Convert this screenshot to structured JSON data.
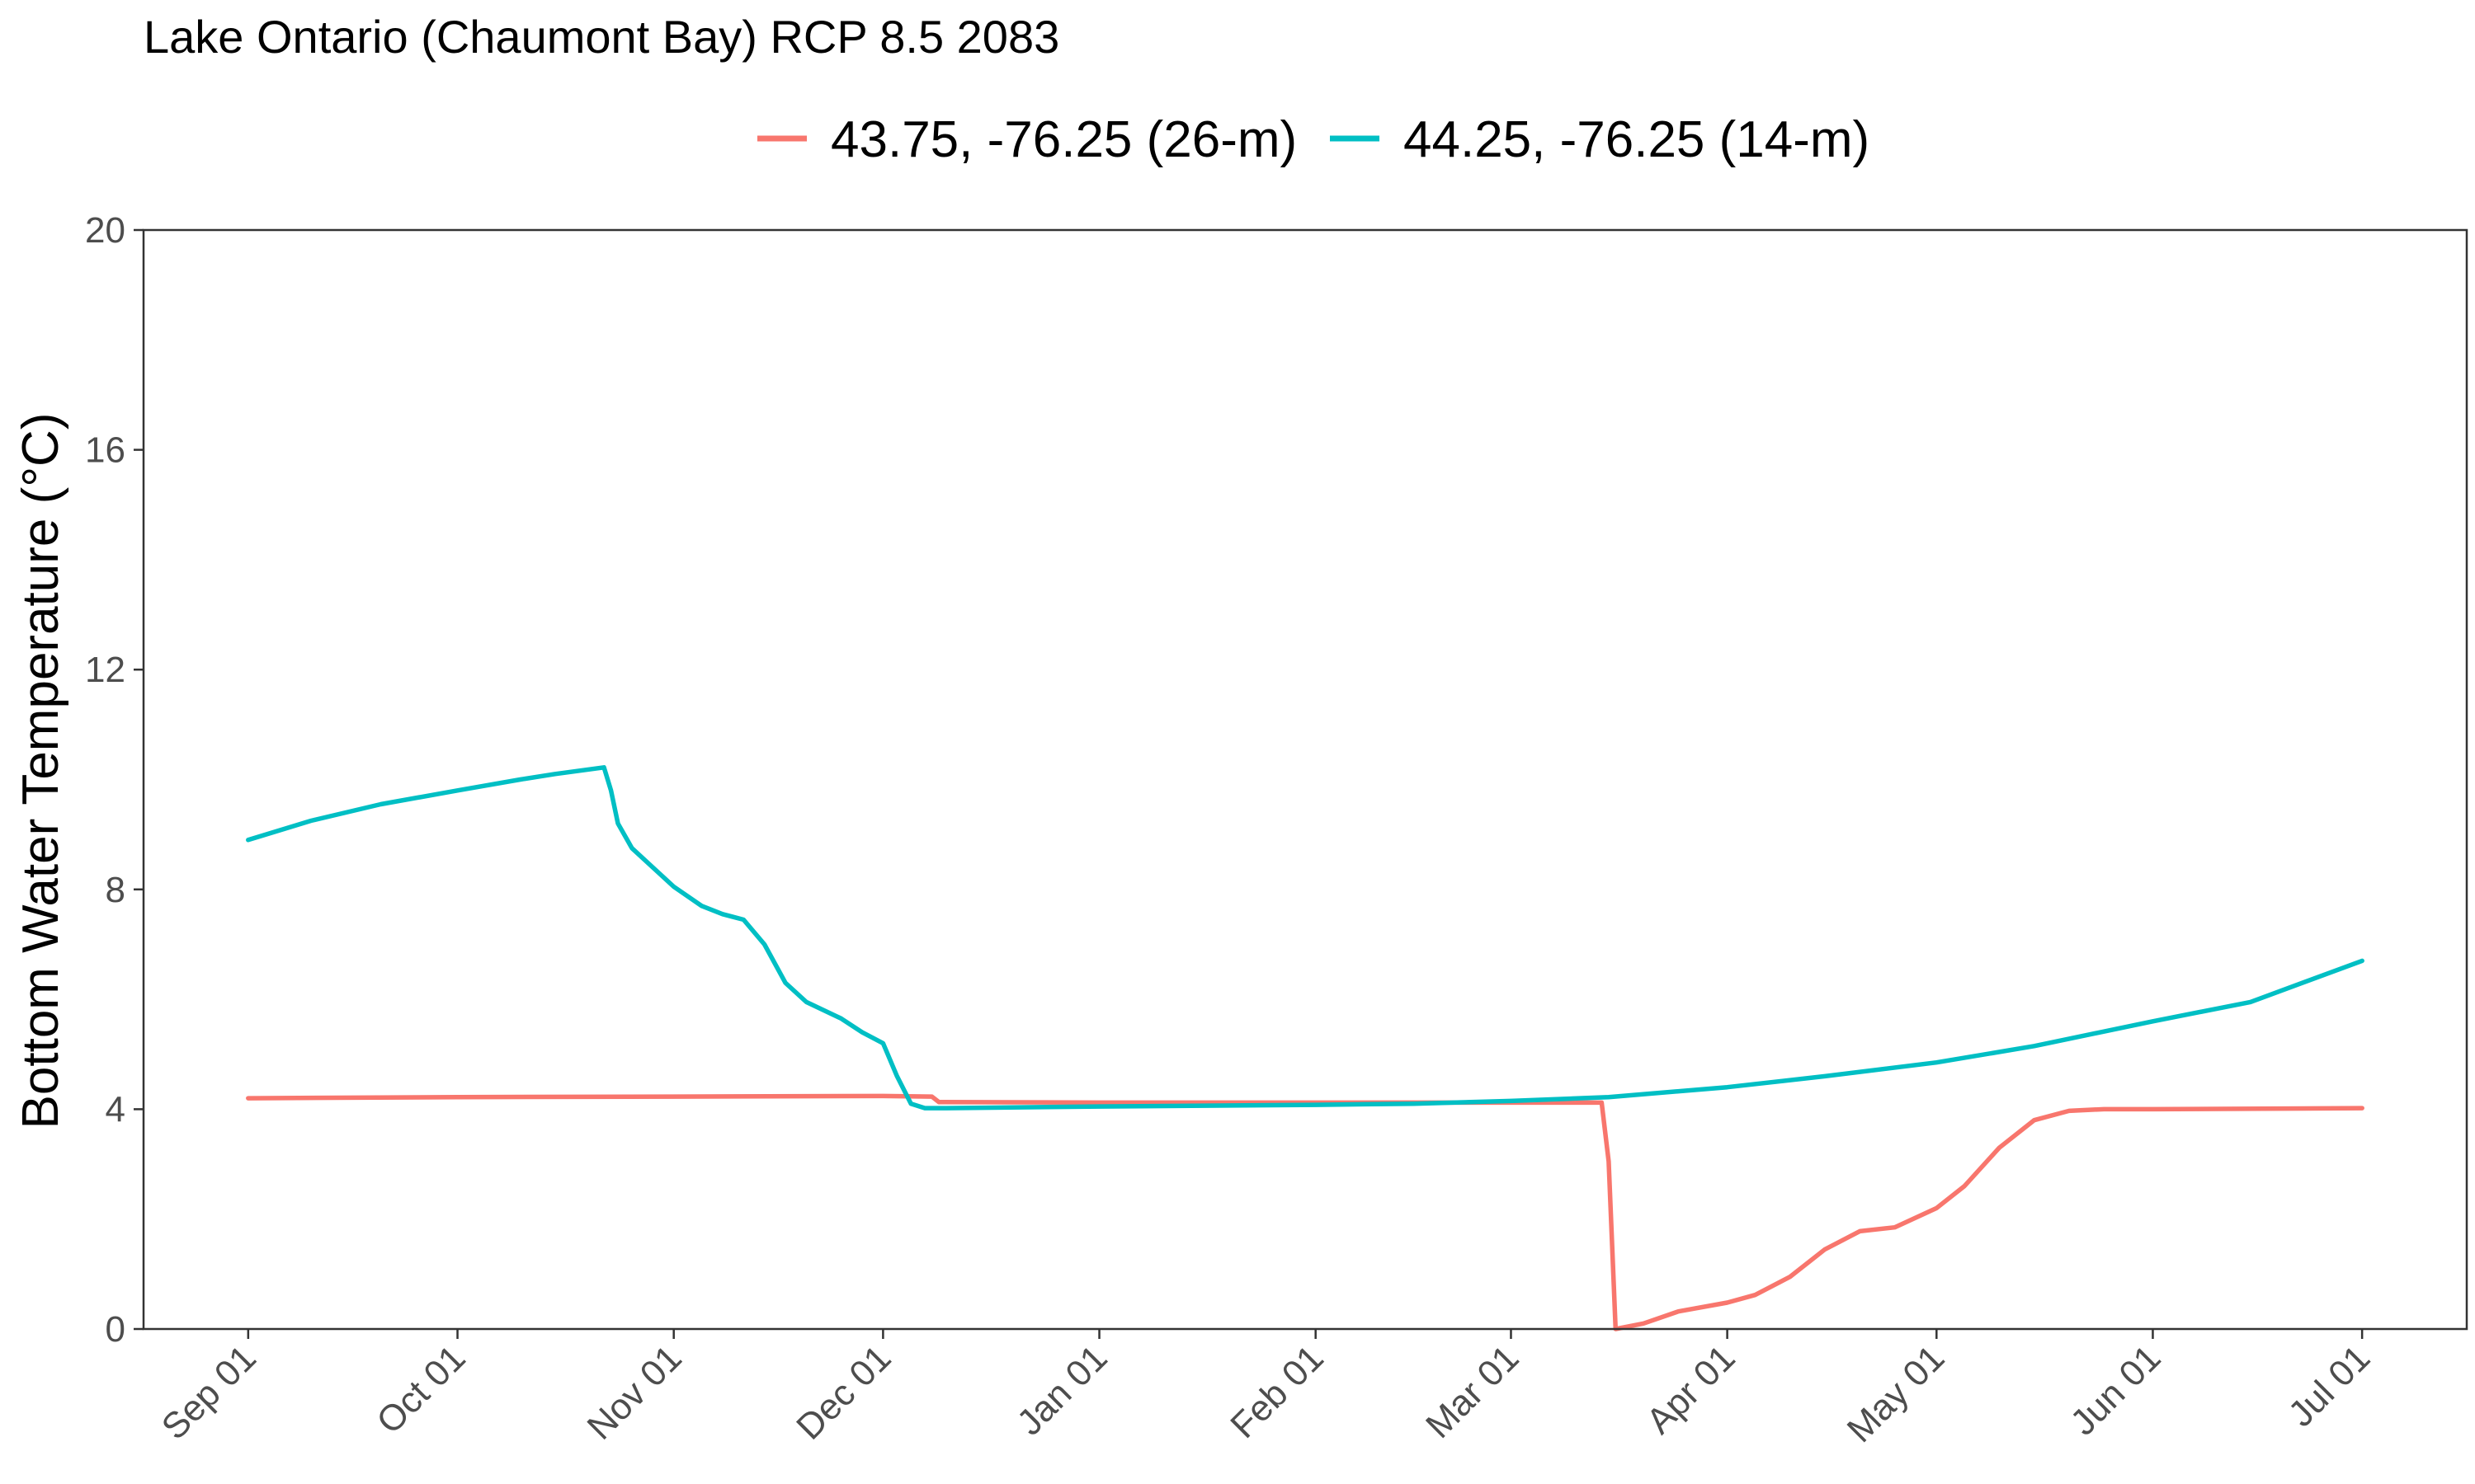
{
  "chart_data": {
    "type": "line",
    "title": "Lake Ontario (Chaumont Bay) RCP 8.5 2083",
    "xlabel": "",
    "ylabel": "Bottom Water Temperature (°C)",
    "x_type": "date",
    "xlim": [
      "2082-08-17",
      "2083-07-16"
    ],
    "ylim": [
      0,
      20
    ],
    "x_ticks": [
      {
        "date": "2082-09-01",
        "label": "Sep 01"
      },
      {
        "date": "2082-10-01",
        "label": "Oct 01"
      },
      {
        "date": "2082-11-01",
        "label": "Nov 01"
      },
      {
        "date": "2082-12-01",
        "label": "Dec 01"
      },
      {
        "date": "2083-01-01",
        "label": "Jan 01"
      },
      {
        "date": "2083-02-01",
        "label": "Feb 01"
      },
      {
        "date": "2083-03-01",
        "label": "Mar 01"
      },
      {
        "date": "2083-04-01",
        "label": "Apr 01"
      },
      {
        "date": "2083-05-01",
        "label": "May 01"
      },
      {
        "date": "2083-06-01",
        "label": "Jun 01"
      },
      {
        "date": "2083-07-01",
        "label": "Jul 01"
      }
    ],
    "y_ticks": [
      0,
      4,
      8,
      12,
      16,
      20
    ],
    "grid": false,
    "legend_position": "top",
    "series": [
      {
        "name": "43.75, -76.25 (26-m)",
        "color": "#F8766D",
        "x": [
          "2082-09-01",
          "2082-10-01",
          "2082-11-01",
          "2082-12-01",
          "2082-12-08",
          "2082-12-09",
          "2083-01-01",
          "2083-02-01",
          "2083-03-01",
          "2083-03-14",
          "2083-03-15",
          "2083-03-16",
          "2083-03-20",
          "2083-03-25",
          "2083-04-01",
          "2083-04-05",
          "2083-04-10",
          "2083-04-15",
          "2083-04-20",
          "2083-04-25",
          "2083-05-01",
          "2083-05-05",
          "2083-05-10",
          "2083-05-15",
          "2083-05-20",
          "2083-05-23",
          "2083-05-25",
          "2083-06-01",
          "2083-07-01"
        ],
        "y": [
          4.2,
          4.22,
          4.23,
          4.24,
          4.23,
          4.13,
          4.12,
          4.12,
          4.12,
          4.12,
          3.05,
          0.0,
          0.1,
          0.32,
          0.48,
          0.62,
          0.95,
          1.45,
          1.78,
          1.85,
          2.2,
          2.6,
          3.3,
          3.8,
          3.97,
          3.99,
          4.0,
          4.0,
          4.02
        ]
      },
      {
        "name": "44.25, -76.25 (14-m)",
        "color": "#00BFC4",
        "x": [
          "2082-09-01",
          "2082-09-10",
          "2082-09-20",
          "2082-10-01",
          "2082-10-10",
          "2082-10-15",
          "2082-10-22",
          "2082-10-23",
          "2082-10-24",
          "2082-10-26",
          "2082-10-29",
          "2082-11-01",
          "2082-11-05",
          "2082-11-08",
          "2082-11-11",
          "2082-11-14",
          "2082-11-17",
          "2082-11-20",
          "2082-11-25",
          "2082-11-28",
          "2082-12-01",
          "2082-12-03",
          "2082-12-05",
          "2082-12-07",
          "2082-12-10",
          "2083-01-01",
          "2083-02-01",
          "2083-02-15",
          "2083-03-01",
          "2083-03-15",
          "2083-04-01",
          "2083-04-15",
          "2083-05-01",
          "2083-05-15",
          "2083-06-01",
          "2083-06-15",
          "2083-07-01"
        ],
        "y": [
          8.9,
          9.25,
          9.55,
          9.8,
          10.0,
          10.1,
          10.22,
          9.8,
          9.2,
          8.75,
          8.4,
          8.05,
          7.7,
          7.55,
          7.45,
          7.0,
          6.3,
          5.95,
          5.65,
          5.4,
          5.2,
          4.6,
          4.1,
          4.02,
          4.02,
          4.05,
          4.08,
          4.1,
          4.15,
          4.22,
          4.4,
          4.6,
          4.85,
          5.15,
          5.6,
          5.95,
          6.7
        ]
      }
    ]
  }
}
